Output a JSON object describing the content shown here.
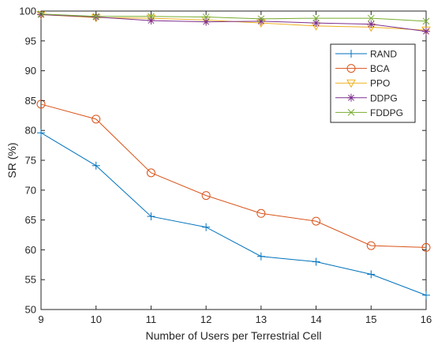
{
  "chart_data": {
    "type": "line",
    "title": "",
    "xlabel": "Number of Users per Terrestrial Cell",
    "ylabel": "SR (%)",
    "x": [
      9,
      10,
      11,
      12,
      13,
      14,
      15,
      16
    ],
    "xlim": [
      9,
      16
    ],
    "ylim": [
      50,
      100
    ],
    "xticks": [
      9,
      10,
      11,
      12,
      13,
      14,
      15,
      16
    ],
    "yticks": [
      50,
      55,
      60,
      65,
      70,
      75,
      80,
      85,
      90,
      95,
      100
    ],
    "grid": false,
    "legend_position": "top-right",
    "series": [
      {
        "name": "RAND",
        "marker": "plus",
        "color": "#0072BD",
        "values": [
          79.6,
          74.1,
          65.6,
          63.8,
          58.9,
          58.0,
          55.9,
          52.4
        ]
      },
      {
        "name": "BCA",
        "marker": "circle",
        "color": "#D95319",
        "values": [
          84.4,
          81.9,
          72.9,
          69.1,
          66.1,
          64.8,
          60.7,
          60.4
        ]
      },
      {
        "name": "PPO",
        "marker": "triangle-down",
        "color": "#EDB120",
        "values": [
          99.4,
          98.9,
          98.8,
          98.5,
          98.0,
          97.5,
          97.3,
          96.8
        ]
      },
      {
        "name": "DDPG",
        "marker": "asterisk",
        "color": "#7E2F8E",
        "values": [
          99.4,
          99.0,
          98.4,
          98.2,
          98.3,
          98.0,
          97.8,
          96.6
        ]
      },
      {
        "name": "FDDPG",
        "marker": "cross",
        "color": "#77AC30",
        "values": [
          99.5,
          99.1,
          99.1,
          99.0,
          98.7,
          98.8,
          98.8,
          98.3
        ]
      }
    ]
  }
}
